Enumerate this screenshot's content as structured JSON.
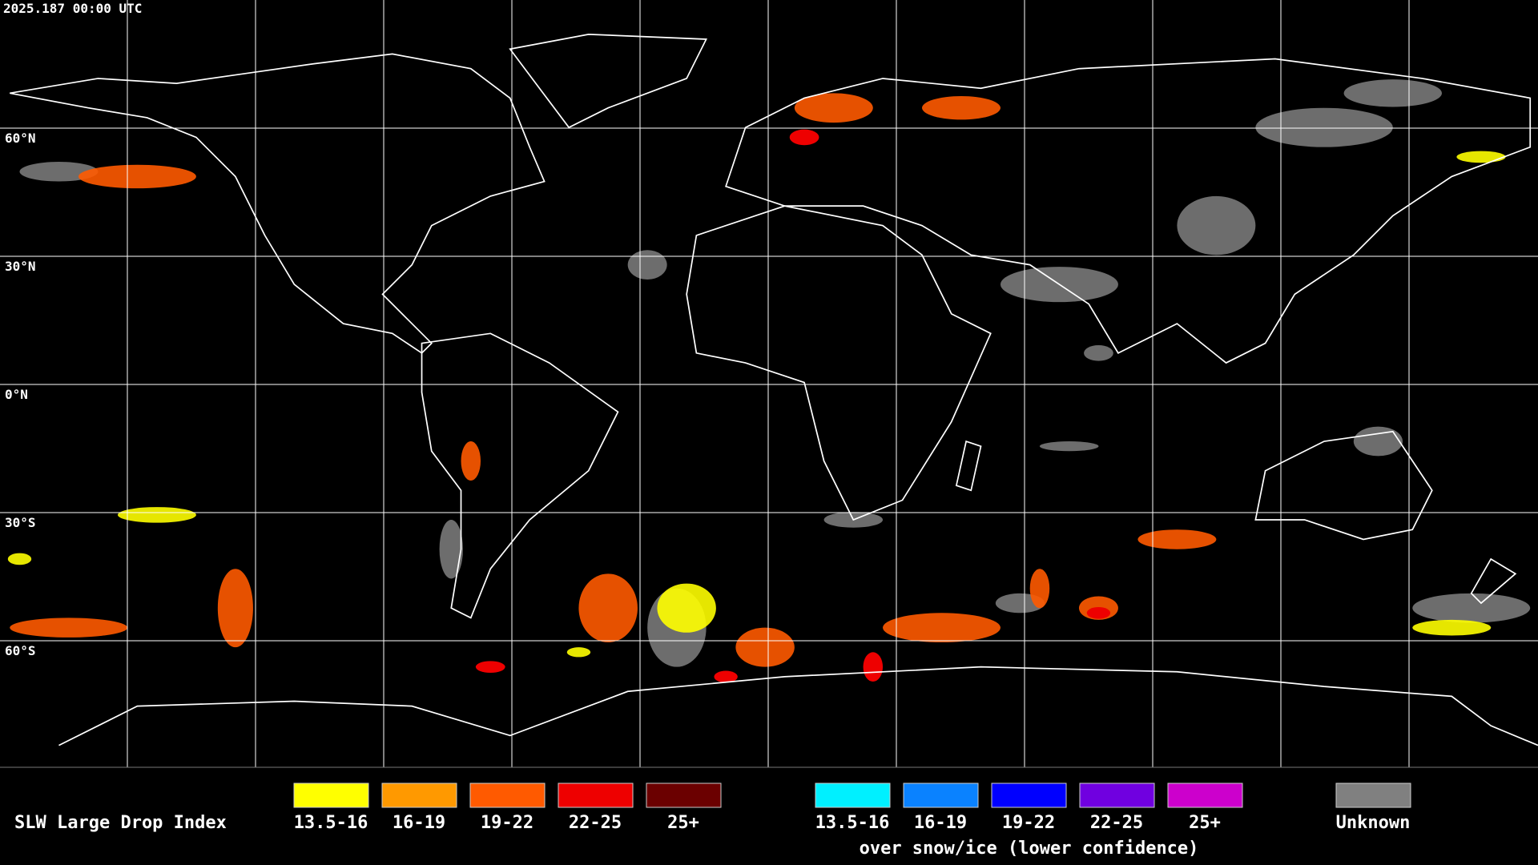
{
  "header": {
    "timestamp": "2025.187 00:00 UTC"
  },
  "map": {
    "latitude_labels": [
      "60°N",
      "30°N",
      "0°N",
      "30°S",
      "60°S"
    ]
  },
  "legend": {
    "title": "SLW Large Drop Index",
    "groups": [
      {
        "items": [
          {
            "label": "13.5-16",
            "color": "#ffff00"
          },
          {
            "label": "16-19",
            "color": "#ff9900"
          },
          {
            "label": "19-22",
            "color": "#ff5a00"
          },
          {
            "label": "22-25",
            "color": "#ee0000"
          },
          {
            "label": "25+",
            "color": "#6b0000"
          }
        ]
      },
      {
        "items": [
          {
            "label": "13.5-16",
            "color": "#00f0ff"
          },
          {
            "label": "16-19",
            "color": "#0a82ff"
          },
          {
            "label": "19-22",
            "color": "#0000ff"
          },
          {
            "label": "22-25",
            "color": "#7000e0"
          },
          {
            "label": "25+",
            "color": "#cc00cc"
          }
        ],
        "note": "over snow/ice (lower confidence)"
      },
      {
        "items": [
          {
            "label": "Unknown",
            "color": "#808080"
          }
        ]
      }
    ]
  }
}
